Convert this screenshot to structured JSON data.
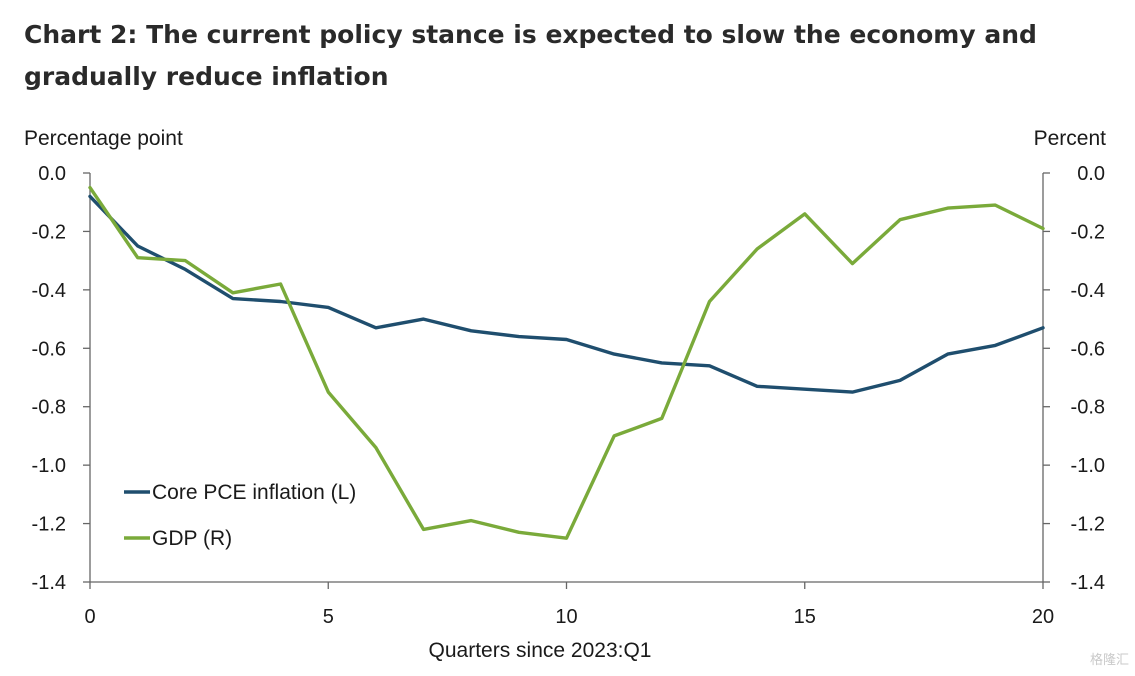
{
  "title": "Chart 2: The current policy stance is expected to slow the economy and gradually reduce inflation",
  "watermark": "格隆汇",
  "chart_data": {
    "type": "line",
    "title": "Chart 2: The current policy stance is expected to slow the economy and gradually reduce inflation",
    "xlabel": "Quarters since 2023:Q1",
    "ylabel_left": "Percentage point",
    "ylabel_right": "Percent",
    "xlim": [
      0,
      20
    ],
    "ylim_left": [
      -1.4,
      0.0
    ],
    "ylim_right": [
      -1.4,
      0.0
    ],
    "x_ticks": [
      "0",
      "5",
      "10",
      "15",
      "20"
    ],
    "x_tick_values": [
      0,
      5,
      10,
      15,
      20
    ],
    "y_ticks": [
      "0.0",
      "-0.2",
      "-0.4",
      "-0.6",
      "-0.8",
      "-1.0",
      "-1.2",
      "-1.4"
    ],
    "y_tick_values": [
      0.0,
      -0.2,
      -0.4,
      -0.6,
      -0.8,
      -1.0,
      -1.2,
      -1.4
    ],
    "grid": false,
    "legend_position": "bottom-left",
    "x": [
      0,
      1,
      2,
      3,
      4,
      5,
      6,
      7,
      8,
      9,
      10,
      11,
      12,
      13,
      14,
      15,
      16,
      17,
      18,
      19,
      20
    ],
    "series": [
      {
        "name": "Core PCE inflation (L)",
        "axis": "left",
        "color": "#1f4e6e",
        "values": [
          -0.08,
          -0.25,
          -0.33,
          -0.43,
          -0.44,
          -0.46,
          -0.53,
          -0.5,
          -0.54,
          -0.56,
          -0.57,
          -0.62,
          -0.65,
          -0.66,
          -0.73,
          -0.74,
          -0.75,
          -0.71,
          -0.62,
          -0.59,
          -0.53
        ]
      },
      {
        "name": "GDP (R)",
        "axis": "right",
        "color": "#7aaa3a",
        "values": [
          -0.05,
          -0.29,
          -0.3,
          -0.41,
          -0.38,
          -0.75,
          -0.94,
          -1.22,
          -1.19,
          -1.23,
          -1.25,
          -0.9,
          -0.84,
          -0.44,
          -0.26,
          -0.14,
          -0.31,
          -0.16,
          -0.12,
          -0.11,
          -0.19
        ]
      }
    ]
  }
}
